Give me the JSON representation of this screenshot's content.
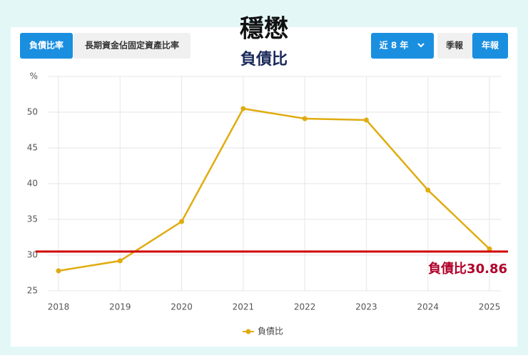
{
  "header": {
    "title": "穩懋"
  },
  "ui": {
    "tabs": [
      "負債比率",
      "長期資金佔固定資產比率"
    ],
    "range": "近 8 年",
    "periods": [
      "季報",
      "年報"
    ]
  },
  "chart_data": {
    "type": "line",
    "title": "負債比",
    "categories": [
      "2018",
      "2019",
      "2020",
      "2021",
      "2022",
      "2023",
      "2024",
      "2025"
    ],
    "series": [
      {
        "name": "負債比",
        "color": "#e0ac10",
        "values": [
          27.8,
          29.2,
          34.7,
          50.5,
          49.1,
          48.9,
          39.1,
          30.86
        ]
      }
    ],
    "ylim": [
      25,
      55
    ],
    "yticks": [
      25,
      30,
      35,
      40,
      45,
      50,
      {
        "value": 55,
        "label": "%"
      }
    ],
    "grid": true,
    "reference_line": {
      "value": 30.5,
      "color": "#d00000"
    },
    "annotation": "負債比30.86"
  }
}
